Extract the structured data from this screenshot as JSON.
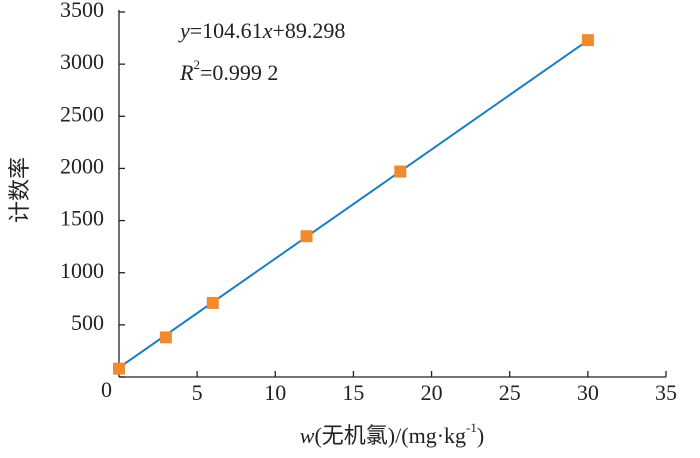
{
  "chart_data": {
    "type": "scatter",
    "x": [
      0,
      3,
      6,
      12,
      18,
      30
    ],
    "series": [
      {
        "color": "#f08a2e",
        "values": [
          80,
          380,
          710,
          1350,
          1970,
          3230
        ]
      }
    ],
    "fit": {
      "slope": 104.61,
      "intercept": 89.298,
      "color": "#1a7fc1"
    },
    "equation": [
      "y",
      "=104.61",
      "x",
      "+89.298"
    ],
    "r_squared": [
      "R",
      "2",
      "=0.999 2"
    ],
    "xlabel": [
      "w",
      "(无机氯)/(mg·kg",
      "-1",
      ")"
    ],
    "ylabel": "计数率",
    "xlim": [
      0,
      35
    ],
    "xticks": [
      5,
      10,
      15,
      20,
      25,
      30,
      35
    ],
    "ylim": [
      0,
      3500
    ],
    "yticks": [
      0,
      500,
      1000,
      1500,
      2000,
      2500,
      3000,
      3500
    ]
  }
}
